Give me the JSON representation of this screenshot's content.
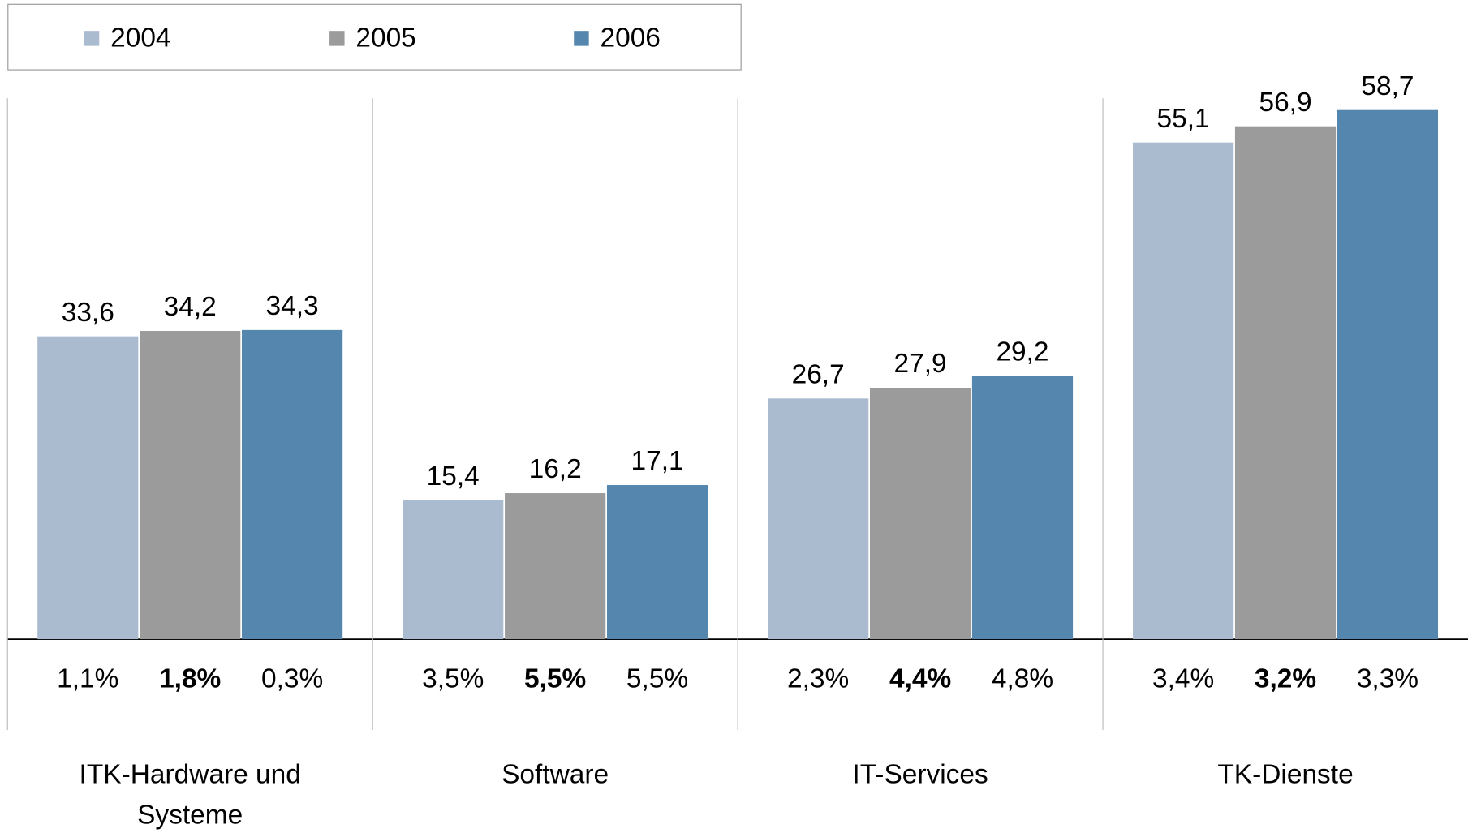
{
  "chart_data": {
    "type": "bar",
    "categories": [
      "ITK-Hardware und Systeme",
      "Software",
      "IT-Services",
      "TK-Dienste"
    ],
    "series": [
      {
        "name": "2004",
        "color": "#aabbd0",
        "values": [
          33.6,
          15.4,
          26.7,
          55.1
        ],
        "value_labels": [
          "33,6",
          "15,4",
          "26,7",
          "55,1"
        ],
        "growth": [
          1.1,
          3.5,
          2.3,
          3.4
        ],
        "growth_labels": [
          "1,1%",
          "3,5%",
          "2,3%",
          "3,4%"
        ],
        "growth_bold": false
      },
      {
        "name": "2005",
        "color": "#9b9b9b",
        "values": [
          34.2,
          16.2,
          27.9,
          56.9
        ],
        "value_labels": [
          "34,2",
          "16,2",
          "27,9",
          "56,9"
        ],
        "growth": [
          1.8,
          5.5,
          4.4,
          3.2
        ],
        "growth_labels": [
          "1,8%",
          "5,5%",
          "4,4%",
          "3,2%"
        ],
        "growth_bold": true
      },
      {
        "name": "2006",
        "color": "#5586ad",
        "values": [
          34.3,
          17.1,
          29.2,
          58.7
        ],
        "value_labels": [
          "34,3",
          "17,1",
          "29,2",
          "58,7"
        ],
        "growth": [
          0.3,
          5.5,
          4.8,
          3.3
        ],
        "growth_labels": [
          "0,3%",
          "5,5%",
          "4,8%",
          "3,3%"
        ],
        "growth_bold": false
      }
    ],
    "ylim": [
      0,
      60
    ],
    "legend": "top-left"
  }
}
